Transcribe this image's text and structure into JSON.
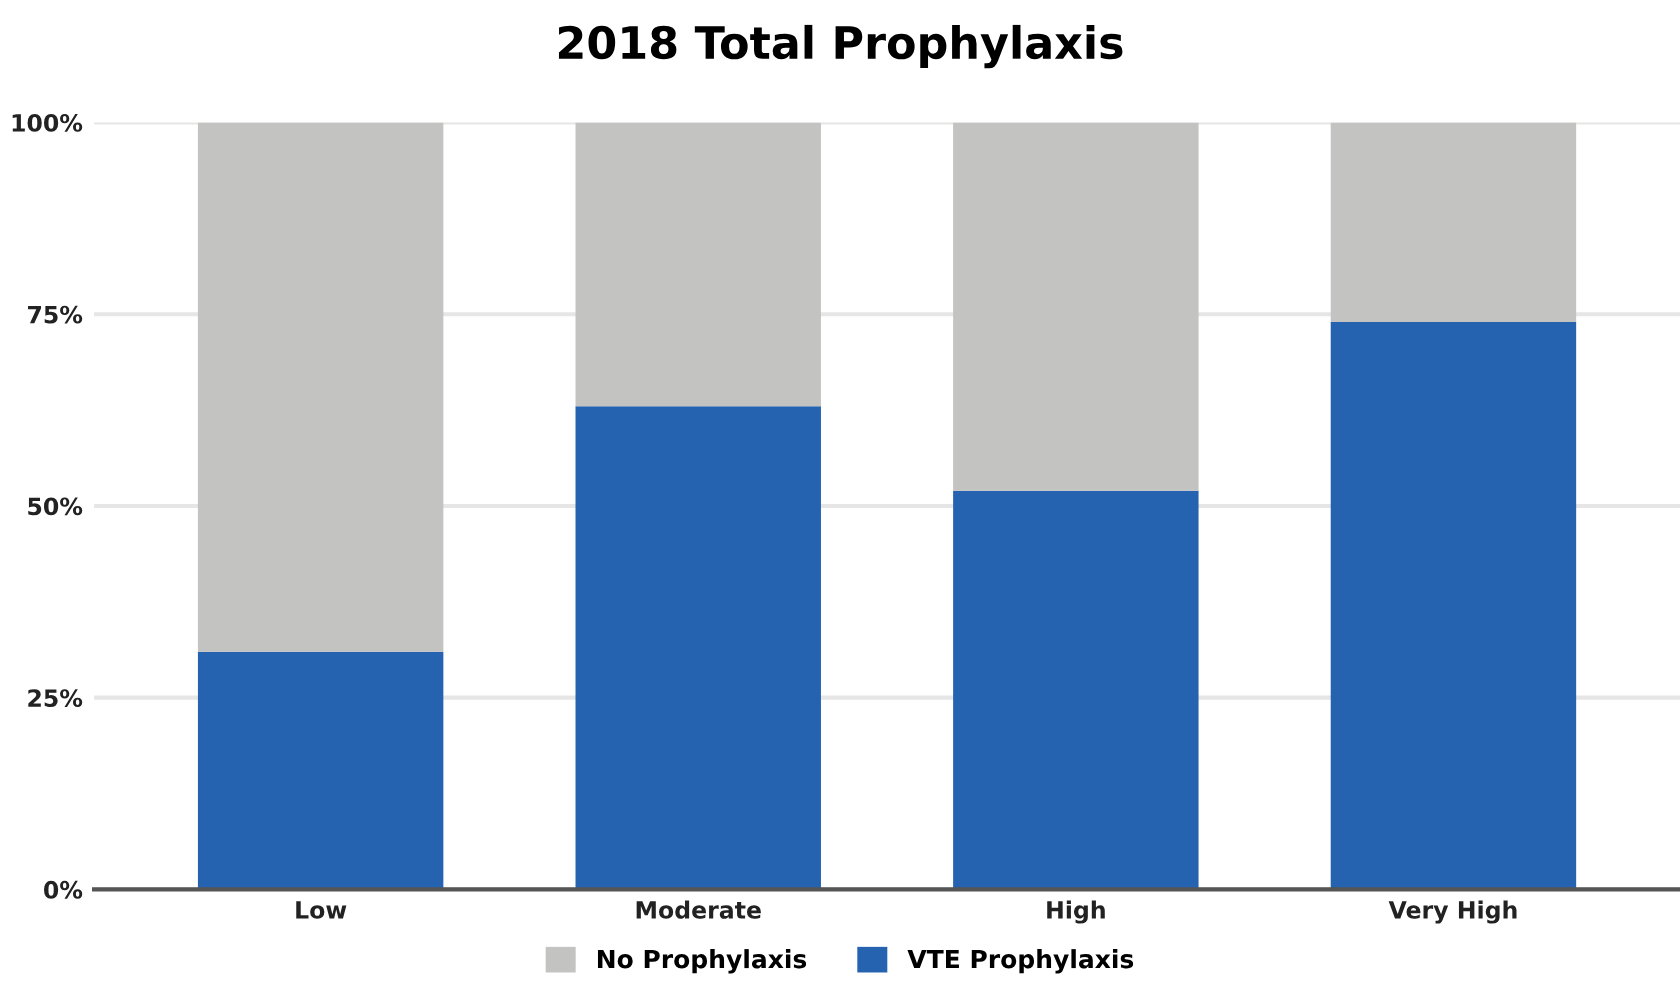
{
  "chart_data": {
    "type": "bar",
    "title": "2018 Total Prophylaxis",
    "categories": [
      "Low",
      "Moderate",
      "High",
      "Very High"
    ],
    "stacked": true,
    "series": [
      {
        "name": "VTE Prophylaxis",
        "color": "#2563b0",
        "values": [
          31,
          63,
          52,
          74
        ]
      },
      {
        "name": "No Prophylaxis",
        "color": "#c3c3c2",
        "values": [
          69,
          37,
          48,
          26
        ]
      }
    ],
    "ylim": [
      0,
      100
    ],
    "yticks": [
      {
        "value": 0,
        "label": "0%"
      },
      {
        "value": 25,
        "label": "25%"
      },
      {
        "value": 50,
        "label": "50%"
      },
      {
        "value": 75,
        "label": "75%"
      },
      {
        "value": 100,
        "label": "100%"
      }
    ],
    "grid": "y",
    "legend": "bottom"
  }
}
